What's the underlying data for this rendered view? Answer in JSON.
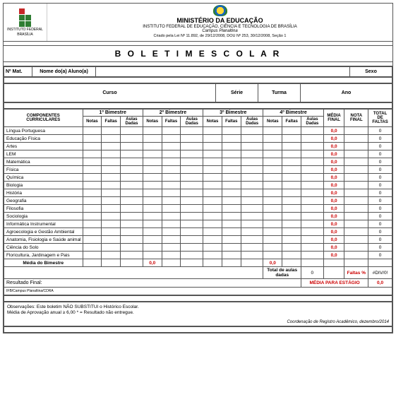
{
  "header": {
    "ministry": "MINISTÉRIO DA EDUCAÇÃO",
    "institute": "INSTITUTO FEDERAL DE EDUCAÇÃO, CIÊNCIA E TECNOLOGIA DE BRASÍLIA",
    "campus": "Campus  Planaltina",
    "law": "Criado pela Lei Nº 11.892, de 29/12/2008, DOU Nº 253, 30/12/2008, Seção 1",
    "logo_text1": "INSTITUTO FEDERAL",
    "logo_text2": "BRASÍLIA"
  },
  "title": "B O L E T I M    E S C O L A R",
  "id_labels": {
    "mat": "Nº Mat.",
    "nome": "Nome do(a) Aluno(a)",
    "sexo": "Sexo",
    "curso": "Curso",
    "serie": "Série",
    "turma": "Turma",
    "ano": "Ano"
  },
  "grade_headers": {
    "componentes1": "COMPONENTES",
    "componentes2": "CURRICULARES",
    "b1": "1º Bimestre",
    "b2": "2º Bimestre",
    "b3": "3º Bimestre",
    "b4": "4º Bimestre",
    "notas": "Notas",
    "faltas": "Faltas",
    "aulas": "Aulas Dadas",
    "media_final": "MÉDIA FINAL",
    "nota_final": "NOTA FINAL",
    "total_faltas": "TOTAL DE FALTAS"
  },
  "subjects": [
    {
      "name": "Língua Portuguesa",
      "media": "0,0",
      "tf": "0"
    },
    {
      "name": "Educação Física",
      "media": "0,0",
      "tf": "0"
    },
    {
      "name": "Artes",
      "media": "0,0",
      "tf": "0"
    },
    {
      "name": "LEM",
      "media": "0,0",
      "tf": "0"
    },
    {
      "name": "Matemática",
      "media": "0,0",
      "tf": "0"
    },
    {
      "name": "Física",
      "media": "0,0",
      "tf": "0"
    },
    {
      "name": "Química",
      "media": "0,0",
      "tf": "0"
    },
    {
      "name": "Biologia",
      "media": "0,0",
      "tf": "0"
    },
    {
      "name": "História",
      "media": "0,0",
      "tf": "0"
    },
    {
      "name": "Geografia",
      "media": "0,0",
      "tf": "0"
    },
    {
      "name": "Filosofia",
      "media": "0,0",
      "tf": "0"
    },
    {
      "name": "Sociologia",
      "media": "0,0",
      "tf": "0"
    },
    {
      "name": "Informática Instrumental",
      "media": "0,0",
      "tf": "0",
      "small": true
    },
    {
      "name": "Agroecologia e Gestão Ambiental",
      "media": "0,0",
      "tf": "0",
      "small": true
    },
    {
      "name": "Anatomia, Fisiologia e Saúde animal",
      "media": "0,0",
      "tf": "0",
      "small": true
    },
    {
      "name": "Ciência do Solo",
      "media": "0,0",
      "tf": "0"
    },
    {
      "name": "Floricultura, Jardinagem e Pais",
      "media": "0,0",
      "tf": "0",
      "small": true
    }
  ],
  "media_bimestre": {
    "label": "Média do Bimestre",
    "b1": "",
    "b2": "0,0",
    "b3": "",
    "b4": "0,0"
  },
  "totals": {
    "total_aulas_label": "Total de aulas dadas",
    "total_aulas": "0",
    "faltas_pct_label": "Faltas %",
    "faltas_pct": "#DIV/0!"
  },
  "resultado": {
    "label": "Resultado Final:",
    "media_estagio_label": "MÉDIA PARA ESTÁGIO",
    "media_estagio": "0,0",
    "campus_line": "IFB/Campus  Planaltina/CDRA"
  },
  "obs": {
    "line1": "Observações: Este boletim NÃO SUBSTITUI o Histórico Escolar.",
    "line2": "Média de Aprovação anual  ≥ 6,00 * = Resultado não entregue."
  },
  "coord": "Coordenação de Registro Acadêmico, dezembro/2014",
  "colors": {
    "red": "#cc0000",
    "border": "#555555"
  }
}
